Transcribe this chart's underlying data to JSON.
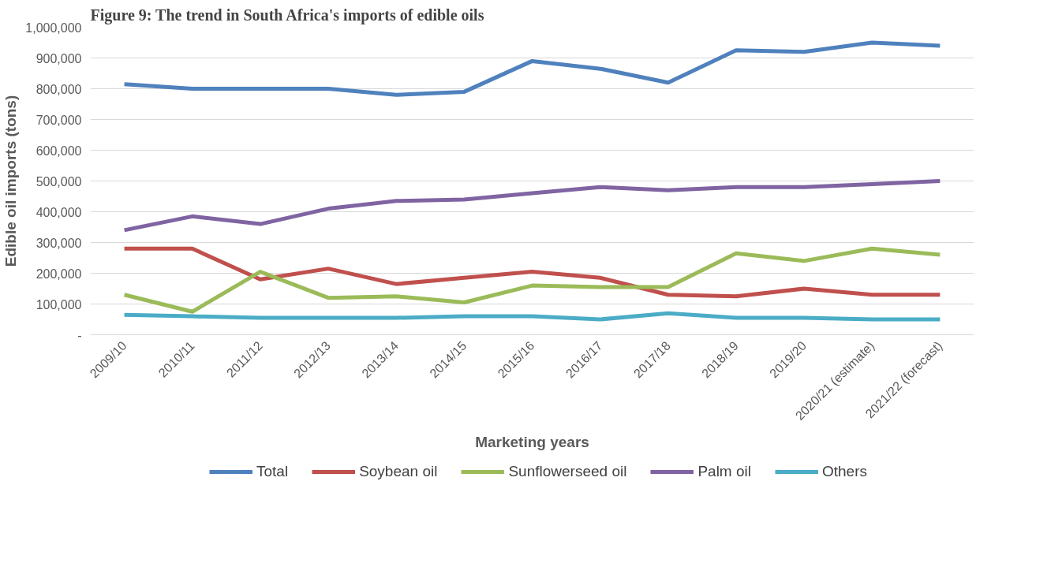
{
  "chart_data": {
    "type": "line",
    "title": "Figure 9: The trend in South Africa's imports of edible oils",
    "xlabel": "Marketing years",
    "ylabel": "Edible oil imports (tons)",
    "categories": [
      "2009/10",
      "2010/11",
      "2011/12",
      "2012/13",
      "2013/14",
      "2014/15",
      "2015/16",
      "2016/17",
      "2017/18",
      "2018/19",
      "2019/20",
      "2020/21 (estimate)",
      "2021/22 (forecast)"
    ],
    "series": [
      {
        "name": "Total",
        "color": "#4f81bd",
        "values": [
          815000,
          800000,
          800000,
          800000,
          780000,
          790000,
          890000,
          865000,
          820000,
          925000,
          920000,
          950000,
          940000
        ]
      },
      {
        "name": "Soybean oil",
        "color": "#c0504d",
        "values": [
          280000,
          280000,
          180000,
          215000,
          165000,
          185000,
          205000,
          185000,
          130000,
          125000,
          150000,
          130000,
          130000
        ]
      },
      {
        "name": "Sunflowerseed oil",
        "color": "#9bbb59",
        "values": [
          130000,
          75000,
          205000,
          120000,
          125000,
          105000,
          160000,
          155000,
          155000,
          265000,
          240000,
          280000,
          260000
        ]
      },
      {
        "name": "Palm oil",
        "color": "#8064a2",
        "values": [
          340000,
          385000,
          360000,
          410000,
          435000,
          440000,
          460000,
          480000,
          470000,
          480000,
          480000,
          490000,
          500000
        ]
      },
      {
        "name": "Others",
        "color": "#4bacc6",
        "values": [
          65000,
          60000,
          55000,
          55000,
          55000,
          60000,
          60000,
          50000,
          70000,
          55000,
          55000,
          50000,
          50000
        ]
      }
    ],
    "ylim": [
      0,
      1000000
    ],
    "yticks": [
      {
        "value": 0,
        "label": "-"
      },
      {
        "value": 100000,
        "label": "100,000"
      },
      {
        "value": 200000,
        "label": "200,000"
      },
      {
        "value": 300000,
        "label": "300,000"
      },
      {
        "value": 400000,
        "label": "400,000"
      },
      {
        "value": 500000,
        "label": "500,000"
      },
      {
        "value": 600000,
        "label": "600,000"
      },
      {
        "value": 700000,
        "label": "700,000"
      },
      {
        "value": 800000,
        "label": "800,000"
      },
      {
        "value": 900000,
        "label": "900,000"
      },
      {
        "value": 1000000,
        "label": "1,000,000"
      }
    ],
    "grid": "y",
    "legend": "bottom",
    "marker": "none",
    "line_style": "solid"
  }
}
